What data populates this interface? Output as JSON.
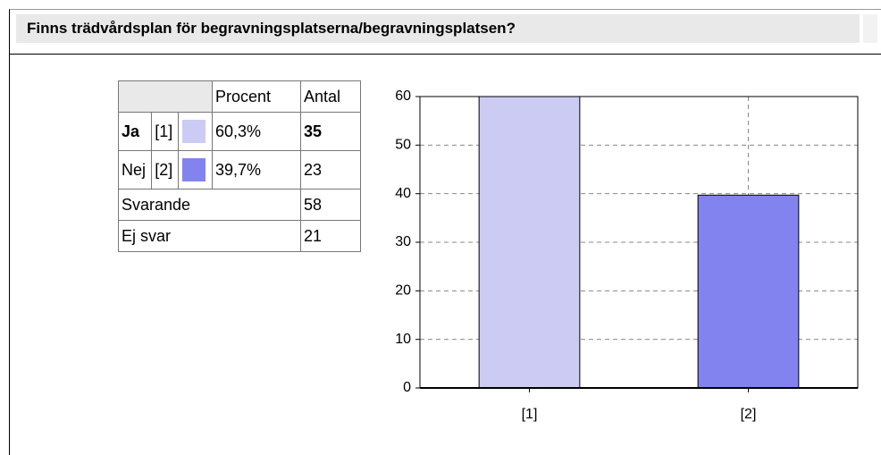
{
  "header": {
    "title": "Finns trädvårdsplan för begravningsplatserna/begravningsplatsen?"
  },
  "table": {
    "columns": [
      "Procent",
      "Antal"
    ],
    "rows": [
      [
        "Ja",
        "[1]",
        "60,3%",
        35
      ],
      [
        "Nej",
        "[2]",
        "39,7%",
        23
      ]
    ],
    "totals": [
      [
        "Svarande",
        58
      ],
      [
        "Ej svar",
        21
      ]
    ]
  },
  "chart_data": {
    "type": "bar",
    "categories": [
      "[1]",
      "[2]"
    ],
    "values": [
      60.3,
      39.7
    ],
    "colors": [
      "#cccbf4",
      "#8283ee"
    ],
    "ylim": [
      0,
      60
    ],
    "yticks": [
      0,
      10,
      20,
      30,
      40,
      50,
      60
    ],
    "grid": true
  }
}
